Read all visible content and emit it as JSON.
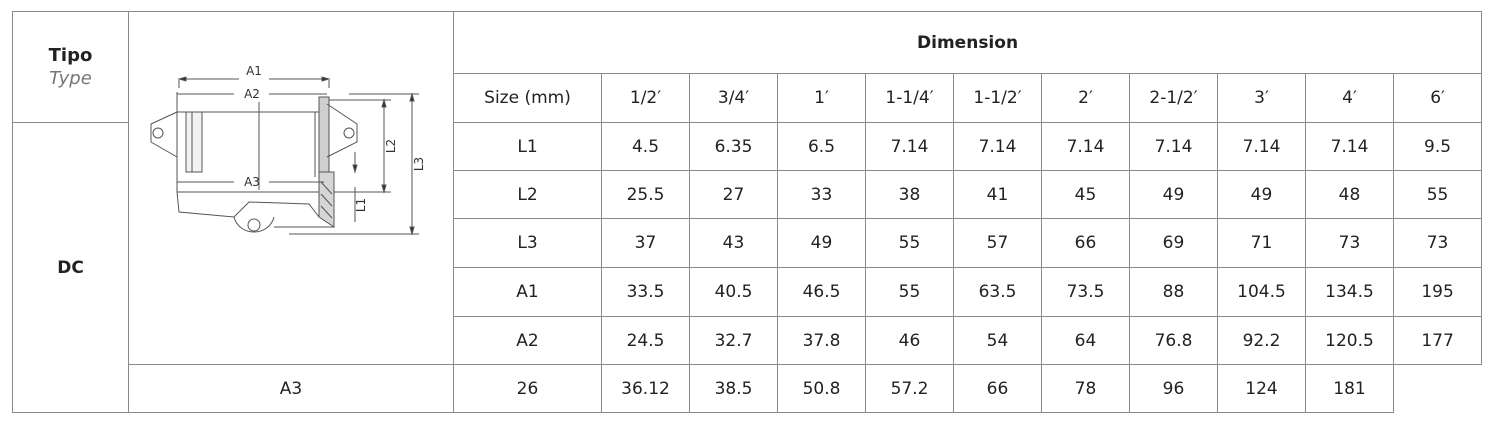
{
  "type_header": {
    "tipo": "Tipo",
    "type": "Type"
  },
  "type_value": "DC",
  "dimension_title": "Dimension",
  "drawing_labels": [
    "A1",
    "A2",
    "A3",
    "L1",
    "L2",
    "L3"
  ],
  "size_label": "Size (mm)",
  "sizes": [
    "1/2′",
    "3/4′",
    "1′",
    "1-1/4′",
    "1-1/2′",
    "2′",
    "2-1/2′",
    "3′",
    "4′",
    "6′"
  ],
  "rows": [
    {
      "label": "L1",
      "values": [
        "4.5",
        "6.35",
        "6.5",
        "7.14",
        "7.14",
        "7.14",
        "7.14",
        "7.14",
        "7.14",
        "9.5"
      ]
    },
    {
      "label": "L2",
      "values": [
        "25.5",
        "27",
        "33",
        "38",
        "41",
        "45",
        "49",
        "49",
        "48",
        "55"
      ]
    },
    {
      "label": "L3",
      "values": [
        "37",
        "43",
        "49",
        "55",
        "57",
        "66",
        "69",
        "71",
        "73",
        "73"
      ]
    },
    {
      "label": "A1",
      "values": [
        "33.5",
        "40.5",
        "46.5",
        "55",
        "63.5",
        "73.5",
        "88",
        "104.5",
        "134.5",
        "195"
      ]
    },
    {
      "label": "A2",
      "values": [
        "24.5",
        "32.7",
        "37.8",
        "46",
        "54",
        "64",
        "76.8",
        "92.2",
        "120.5",
        "177"
      ]
    },
    {
      "label": "A3",
      "values": [
        "26",
        "36.12",
        "38.5",
        "50.8",
        "57.2",
        "66",
        "78",
        "96",
        "124",
        "181"
      ]
    }
  ]
}
